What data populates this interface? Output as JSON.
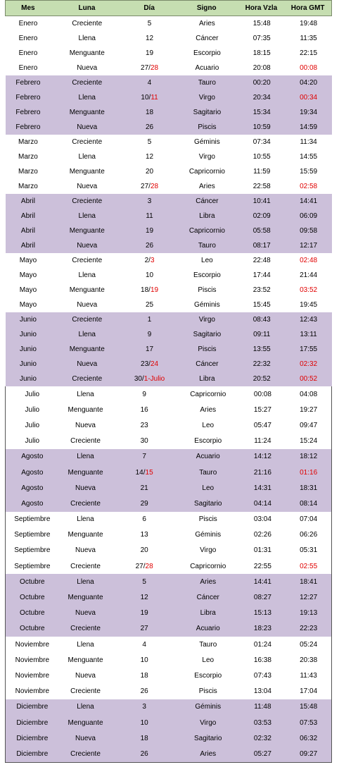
{
  "headers": [
    "Mes",
    "Luna",
    "Día",
    "Signo",
    "Hora Vzla",
    "Hora GMT"
  ],
  "rows": [
    {
      "mes": "Enero",
      "luna": "Creciente",
      "dia": "5",
      "dia_red": "",
      "signo": "Aries",
      "vzla": "15:48",
      "gmt": "19:48",
      "gmt_red": false,
      "band": "white"
    },
    {
      "mes": "Enero",
      "luna": "Llena",
      "dia": "12",
      "dia_red": "",
      "signo": "Cáncer",
      "vzla": "07:35",
      "gmt": "11:35",
      "gmt_red": false,
      "band": "white"
    },
    {
      "mes": "Enero",
      "luna": "Menguante",
      "dia": "19",
      "dia_red": "",
      "signo": "Escorpio",
      "vzla": "18:15",
      "gmt": "22:15",
      "gmt_red": false,
      "band": "white"
    },
    {
      "mes": "Enero",
      "luna": "Nueva",
      "dia": "27/",
      "dia_red": "28",
      "signo": "Acuario",
      "vzla": "20:08",
      "gmt": "00:08",
      "gmt_red": true,
      "band": "white"
    },
    {
      "mes": "Febrero",
      "luna": "Creciente",
      "dia": "4",
      "dia_red": "",
      "signo": "Tauro",
      "vzla": "00:20",
      "gmt": "04:20",
      "gmt_red": false,
      "band": "purple"
    },
    {
      "mes": "Febrero",
      "luna": "Llena",
      "dia": "10/",
      "dia_red": "11",
      "signo": "Virgo",
      "vzla": "20:34",
      "gmt": "00:34",
      "gmt_red": true,
      "band": "purple"
    },
    {
      "mes": "Febrero",
      "luna": "Menguante",
      "dia": "18",
      "dia_red": "",
      "signo": "Sagitario",
      "vzla": "15:34",
      "gmt": "19:34",
      "gmt_red": false,
      "band": "purple"
    },
    {
      "mes": "Febrero",
      "luna": "Nueva",
      "dia": "26",
      "dia_red": "",
      "signo": "Piscis",
      "vzla": "10:59",
      "gmt": "14:59",
      "gmt_red": false,
      "band": "purple"
    },
    {
      "mes": "Marzo",
      "luna": "Creciente",
      "dia": "5",
      "dia_red": "",
      "signo": "Géminis",
      "vzla": "07:34",
      "gmt": "11:34",
      "gmt_red": false,
      "band": "white"
    },
    {
      "mes": "Marzo",
      "luna": "Llena",
      "dia": "12",
      "dia_red": "",
      "signo": "Virgo",
      "vzla": "10:55",
      "gmt": "14:55",
      "gmt_red": false,
      "band": "white"
    },
    {
      "mes": "Marzo",
      "luna": "Menguante",
      "dia": "20",
      "dia_red": "",
      "signo": "Capricornio",
      "vzla": "11:59",
      "gmt": "15:59",
      "gmt_red": false,
      "band": "white"
    },
    {
      "mes": "Marzo",
      "luna": "Nueva",
      "dia": "27/",
      "dia_red": "28",
      "signo": "Aries",
      "vzla": "22:58",
      "gmt": "02:58",
      "gmt_red": true,
      "band": "white"
    },
    {
      "mes": "Abril",
      "luna": "Creciente",
      "dia": "3",
      "dia_red": "",
      "signo": "Cáncer",
      "vzla": "10:41",
      "gmt": "14:41",
      "gmt_red": false,
      "band": "purple"
    },
    {
      "mes": "Abril",
      "luna": "Llena",
      "dia": "11",
      "dia_red": "",
      "signo": "Libra",
      "vzla": "02:09",
      "gmt": "06:09",
      "gmt_red": false,
      "band": "purple"
    },
    {
      "mes": "Abril",
      "luna": "Menguante",
      "dia": "19",
      "dia_red": "",
      "signo": "Capricornio",
      "vzla": "05:58",
      "gmt": "09:58",
      "gmt_red": false,
      "band": "purple"
    },
    {
      "mes": "Abril",
      "luna": "Nueva",
      "dia": "26",
      "dia_red": "",
      "signo": "Tauro",
      "vzla": "08:17",
      "gmt": "12:17",
      "gmt_red": false,
      "band": "purple"
    },
    {
      "mes": "Mayo",
      "luna": "Creciente",
      "dia": "2/",
      "dia_red": "3",
      "signo": "Leo",
      "vzla": "22:48",
      "gmt": "02:48",
      "gmt_red": true,
      "band": "white"
    },
    {
      "mes": "Mayo",
      "luna": "Llena",
      "dia": "10",
      "dia_red": "",
      "signo": "Escorpio",
      "vzla": "17:44",
      "gmt": "21:44",
      "gmt_red": false,
      "band": "white"
    },
    {
      "mes": "Mayo",
      "luna": "Menguante",
      "dia": "18/",
      "dia_red": "19",
      "signo": "Piscis",
      "vzla": "23:52",
      "gmt": "03:52",
      "gmt_red": true,
      "band": "white"
    },
    {
      "mes": "Mayo",
      "luna": "Nueva",
      "dia": "25",
      "dia_red": "",
      "signo": "Géminis",
      "vzla": "15:45",
      "gmt": "19:45",
      "gmt_red": false,
      "band": "white"
    },
    {
      "mes": "Junio",
      "luna": "Creciente",
      "dia": "1",
      "dia_red": "",
      "signo": "Virgo",
      "vzla": "08:43",
      "gmt": "12:43",
      "gmt_red": false,
      "band": "purple"
    },
    {
      "mes": "Junio",
      "luna": "Llena",
      "dia": "9",
      "dia_red": "",
      "signo": "Sagitario",
      "vzla": "09:11",
      "gmt": "13:11",
      "gmt_red": false,
      "band": "purple"
    },
    {
      "mes": "Junio",
      "luna": "Menguante",
      "dia": "17",
      "dia_red": "",
      "signo": "Piscis",
      "vzla": "13:55",
      "gmt": "17:55",
      "gmt_red": false,
      "band": "purple"
    },
    {
      "mes": "Junio",
      "luna": "Nueva",
      "dia": "23/",
      "dia_red": "24",
      "signo": "Cáncer",
      "vzla": "22:32",
      "gmt": "02:32",
      "gmt_red": true,
      "band": "purple"
    },
    {
      "mes": "Junio",
      "luna": "Creciente",
      "dia": "30/",
      "dia_red": "1-Julio",
      "signo": "Libra",
      "vzla": "20:52",
      "gmt": "00:52",
      "gmt_red": true,
      "band": "purple"
    }
  ],
  "rows2": [
    {
      "mes": "Julio",
      "luna": "Llena",
      "dia": "9",
      "dia_red": "",
      "signo": "Capricornio",
      "vzla": "00:08",
      "gmt": "04:08",
      "gmt_red": false,
      "band": "white"
    },
    {
      "mes": "Julio",
      "luna": "Menguante",
      "dia": "16",
      "dia_red": "",
      "signo": "Aries",
      "vzla": "15:27",
      "gmt": "19:27",
      "gmt_red": false,
      "band": "white"
    },
    {
      "mes": "Julio",
      "luna": "Nueva",
      "dia": "23",
      "dia_red": "",
      "signo": "Leo",
      "vzla": "05:47",
      "gmt": "09:47",
      "gmt_red": false,
      "band": "white"
    },
    {
      "mes": "Julio",
      "luna": "Creciente",
      "dia": "30",
      "dia_red": "",
      "signo": "Escorpio",
      "vzla": "11:24",
      "gmt": "15:24",
      "gmt_red": false,
      "band": "white"
    },
    {
      "mes": "Agosto",
      "luna": "Llena",
      "dia": "7",
      "dia_red": "",
      "signo": "Acuario",
      "vzla": "14:12",
      "gmt": "18:12",
      "gmt_red": false,
      "band": "purple"
    },
    {
      "mes": "Agosto",
      "luna": "Menguante",
      "dia": "14/",
      "dia_red": "15",
      "signo": "Tauro",
      "vzla": "21:16",
      "gmt": "01:16",
      "gmt_red": true,
      "band": "purple"
    },
    {
      "mes": "Agosto",
      "luna": "Nueva",
      "dia": "21",
      "dia_red": "",
      "signo": "Leo",
      "vzla": "14:31",
      "gmt": "18:31",
      "gmt_red": false,
      "band": "purple"
    },
    {
      "mes": "Agosto",
      "luna": "Creciente",
      "dia": "29",
      "dia_red": "",
      "signo": "Sagitario",
      "vzla": "04:14",
      "gmt": "08:14",
      "gmt_red": false,
      "band": "purple"
    },
    {
      "mes": "Septiembre",
      "luna": "Llena",
      "dia": "6",
      "dia_red": "",
      "signo": "Piscis",
      "vzla": "03:04",
      "gmt": "07:04",
      "gmt_red": false,
      "band": "white"
    },
    {
      "mes": "Septiembre",
      "luna": "Menguante",
      "dia": "13",
      "dia_red": "",
      "signo": "Géminis",
      "vzla": "02:26",
      "gmt": "06:26",
      "gmt_red": false,
      "band": "white"
    },
    {
      "mes": "Septiembre",
      "luna": "Nueva",
      "dia": "20",
      "dia_red": "",
      "signo": "Virgo",
      "vzla": "01:31",
      "gmt": "05:31",
      "gmt_red": false,
      "band": "white"
    },
    {
      "mes": "Septiembre",
      "luna": "Creciente",
      "dia": "27/",
      "dia_red": "28",
      "signo": "Capricornio",
      "vzla": "22:55",
      "gmt": "02:55",
      "gmt_red": true,
      "band": "white"
    },
    {
      "mes": "Octubre",
      "luna": "Llena",
      "dia": "5",
      "dia_red": "",
      "signo": "Aries",
      "vzla": "14:41",
      "gmt": "18:41",
      "gmt_red": false,
      "band": "purple"
    },
    {
      "mes": "Octubre",
      "luna": "Menguante",
      "dia": "12",
      "dia_red": "",
      "signo": "Cáncer",
      "vzla": "08:27",
      "gmt": "12:27",
      "gmt_red": false,
      "band": "purple"
    },
    {
      "mes": "Octubre",
      "luna": "Nueva",
      "dia": "19",
      "dia_red": "",
      "signo": "Libra",
      "vzla": "15:13",
      "gmt": "19:13",
      "gmt_red": false,
      "band": "purple"
    },
    {
      "mes": "Octubre",
      "luna": "Creciente",
      "dia": "27",
      "dia_red": "",
      "signo": "Acuario",
      "vzla": "18:23",
      "gmt": "22:23",
      "gmt_red": false,
      "band": "purple"
    },
    {
      "mes": "Noviembre",
      "luna": "Llena",
      "dia": "4",
      "dia_red": "",
      "signo": "Tauro",
      "vzla": "01:24",
      "gmt": "05:24",
      "gmt_red": false,
      "band": "white"
    },
    {
      "mes": "Noviembre",
      "luna": "Menguante",
      "dia": "10",
      "dia_red": "",
      "signo": "Leo",
      "vzla": "16:38",
      "gmt": "20:38",
      "gmt_red": false,
      "band": "white"
    },
    {
      "mes": "Noviembre",
      "luna": "Nueva",
      "dia": "18",
      "dia_red": "",
      "signo": "Escorpio",
      "vzla": "07:43",
      "gmt": "11:43",
      "gmt_red": false,
      "band": "white"
    },
    {
      "mes": "Noviembre",
      "luna": "Creciente",
      "dia": "26",
      "dia_red": "",
      "signo": "Piscis",
      "vzla": "13:04",
      "gmt": "17:04",
      "gmt_red": false,
      "band": "white"
    },
    {
      "mes": "Diciembre",
      "luna": "Llena",
      "dia": "3",
      "dia_red": "",
      "signo": "Géminis",
      "vzla": "11:48",
      "gmt": "15:48",
      "gmt_red": false,
      "band": "purple"
    },
    {
      "mes": "Diciembre",
      "luna": "Menguante",
      "dia": "10",
      "dia_red": "",
      "signo": "Virgo",
      "vzla": "03:53",
      "gmt": "07:53",
      "gmt_red": false,
      "band": "purple"
    },
    {
      "mes": "Diciembre",
      "luna": "Nueva",
      "dia": "18",
      "dia_red": "",
      "signo": "Sagitario",
      "vzla": "02:32",
      "gmt": "06:32",
      "gmt_red": false,
      "band": "purple"
    },
    {
      "mes": "Diciembre",
      "luna": "Creciente",
      "dia": "26",
      "dia_red": "",
      "signo": "Aries",
      "vzla": "05:27",
      "gmt": "09:27",
      "gmt_red": false,
      "band": "purple"
    }
  ]
}
